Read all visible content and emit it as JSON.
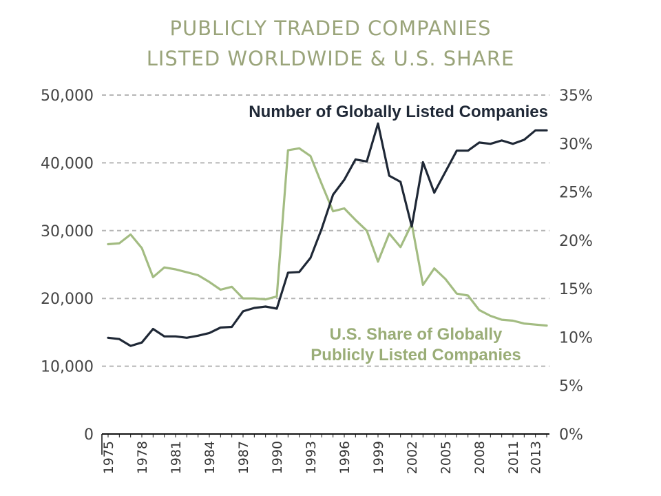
{
  "title_line1": "PUBLICLY TRADED COMPANIES",
  "title_line2": "LISTED WORLDWIDE & U.S. SHARE",
  "colors": {
    "title": "#9aa47a",
    "listed_line": "#1f2836",
    "us_share_line": "#a3bc82",
    "grid": "#b5b5b5"
  },
  "chart_data": {
    "type": "line",
    "title": "PUBLICLY TRADED COMPANIES LISTED WORLDWIDE & U.S. SHARE",
    "x": [
      1975,
      1976,
      1977,
      1978,
      1979,
      1980,
      1981,
      1982,
      1983,
      1984,
      1985,
      1986,
      1987,
      1988,
      1989,
      1990,
      1991,
      1992,
      1993,
      1994,
      1995,
      1996,
      1997,
      1998,
      1999,
      2000,
      2001,
      2002,
      2003,
      2004,
      2005,
      2006,
      2007,
      2008,
      2009,
      2010,
      2011,
      2012,
      2013,
      2014
    ],
    "x_tick_labels": [
      "1975",
      "1978",
      "1981",
      "1984",
      "1987",
      "1990",
      "1993",
      "1996",
      "1999",
      "2002",
      "2005",
      "2008",
      "2011",
      "2013"
    ],
    "x_tick_years": [
      1975,
      1978,
      1981,
      1984,
      1987,
      1990,
      1993,
      1996,
      1999,
      2002,
      2005,
      2008,
      2011,
      2013
    ],
    "left_axis": {
      "ylim": [
        0,
        50000
      ],
      "ticks": [
        "0",
        "10,000",
        "20,000",
        "30,000",
        "40,000",
        "50,000"
      ],
      "tick_values": [
        0,
        10000,
        20000,
        30000,
        40000,
        50000
      ]
    },
    "right_axis": {
      "ylim": [
        0,
        35
      ],
      "ticks": [
        "0%",
        "5%",
        "10%",
        "15%",
        "20%",
        "25%",
        "30%",
        "35%"
      ],
      "tick_values": [
        0,
        5,
        10,
        15,
        20,
        25,
        30,
        35
      ]
    },
    "grid": true,
    "series": [
      {
        "name": "Number of Globally Listed Companies",
        "axis": "left",
        "values": [
          14200,
          14000,
          13000,
          13500,
          15500,
          14400,
          14400,
          14200,
          14500,
          14900,
          15700,
          15800,
          18100,
          18600,
          18800,
          18500,
          23800,
          23900,
          26000,
          30300,
          35300,
          37500,
          40500,
          40200,
          45800,
          38100,
          37200,
          30600,
          40100,
          35600,
          38700,
          41800,
          41800,
          43000,
          42800,
          43300,
          42800,
          43400,
          44800,
          44800
        ],
        "label_line1": "Number of Globally Listed Companies"
      },
      {
        "name": "U.S. Share of Globally Publicly Listed Companies",
        "axis": "right",
        "values": [
          19.6,
          19.7,
          20.6,
          19.2,
          16.2,
          17.2,
          17.0,
          16.7,
          16.4,
          15.7,
          14.9,
          15.2,
          14.0,
          14.0,
          13.9,
          14.2,
          29.3,
          29.5,
          28.7,
          25.8,
          23.0,
          23.3,
          22.1,
          21.0,
          17.8,
          20.7,
          19.3,
          21.7,
          15.4,
          17.1,
          16.0,
          14.5,
          14.3,
          12.8,
          12.2,
          11.8,
          11.7,
          11.4,
          11.3,
          11.2
        ],
        "label_line1": "U.S. Share of Globally",
        "label_line2": "Publicly Listed Companies"
      }
    ]
  }
}
